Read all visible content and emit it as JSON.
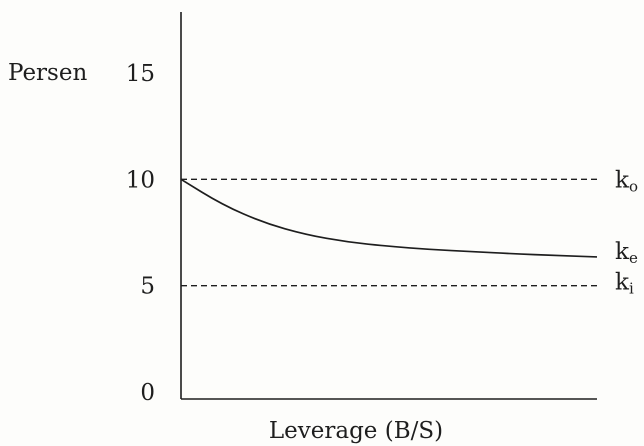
{
  "chart_data": {
    "type": "line",
    "ylabel": "Persen",
    "xlabel": "Leverage (B/S)",
    "ylim": [
      0,
      15
    ],
    "yticks": [
      "0",
      "5",
      "10",
      "15"
    ],
    "grid": false,
    "series": [
      {
        "name": "k",
        "subscript": "o",
        "style": "dashed",
        "x": [
          0,
          1
        ],
        "y": [
          10,
          10
        ]
      },
      {
        "name": "k",
        "subscript": "e",
        "style": "solid",
        "x": [
          0,
          0.1,
          0.2,
          0.3,
          0.4,
          0.5,
          0.6,
          0.7,
          0.8,
          0.9,
          1.0
        ],
        "y": [
          10,
          8.8,
          7.95,
          7.4,
          7.05,
          6.85,
          6.7,
          6.6,
          6.5,
          6.42,
          6.35
        ]
      },
      {
        "name": "k",
        "subscript": "i",
        "style": "dashed",
        "x": [
          0,
          1
        ],
        "y": [
          5,
          5
        ]
      }
    ]
  },
  "colors": {
    "ink": "#1e1e1e",
    "background": "#fdfdfb"
  }
}
